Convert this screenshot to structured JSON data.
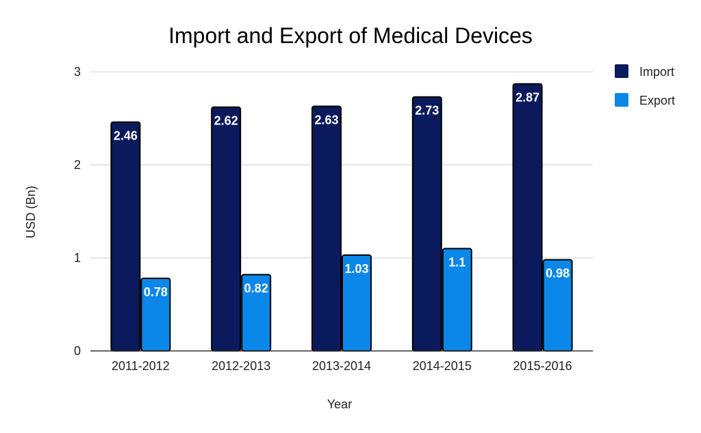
{
  "chart_data": {
    "type": "bar",
    "title": "Import and Export of Medical Devices",
    "xlabel": "Year",
    "ylabel": "USD (Bn)",
    "ylim": [
      0,
      3
    ],
    "yticks": [
      "0",
      "1",
      "2",
      "3"
    ],
    "grid": true,
    "legend_position": "top-right",
    "categories": [
      "2011-2012",
      "2012-2013",
      "2013-2014",
      "2014-2015",
      "2015-2016"
    ],
    "series": [
      {
        "name": "Import",
        "color": "#0b1a5c",
        "values": [
          2.46,
          2.62,
          2.63,
          2.73,
          2.87
        ],
        "labels": [
          "2.46",
          "2.62",
          "2.63",
          "2.73",
          "2.87"
        ]
      },
      {
        "name": "Export",
        "color": "#0a87e8",
        "values": [
          0.78,
          0.82,
          1.03,
          1.1,
          0.98
        ],
        "labels": [
          "0.78",
          "0.82",
          "1.03",
          "1.1",
          "0.98"
        ]
      }
    ]
  }
}
